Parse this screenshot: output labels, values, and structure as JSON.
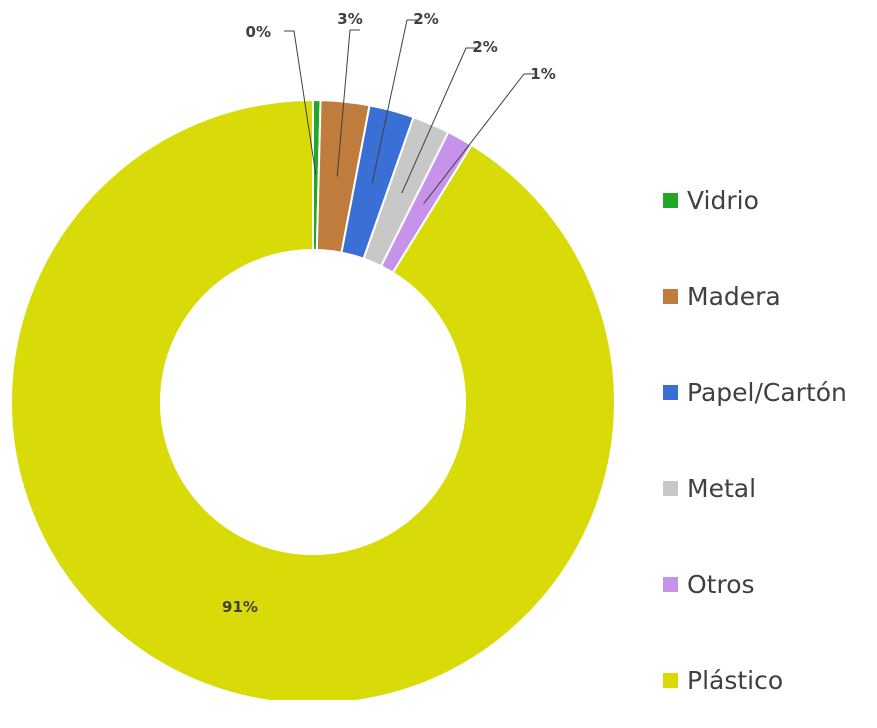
{
  "chart_data": {
    "type": "pie",
    "variant": "donut",
    "categories": [
      "Vidrio",
      "Madera",
      "Papel/Cartón",
      "Metal",
      "Otros",
      "Plástico"
    ],
    "values": [
      0.4,
      2.6,
      2.4,
      2.0,
      1.4,
      91.2
    ],
    "data_labels": [
      "0%",
      "3%",
      "2%",
      "2%",
      "1%",
      "91%"
    ],
    "colors": [
      "#22a829",
      "#c07c3c",
      "#3a6fd6",
      "#c8c8c8",
      "#c792ea",
      "#d9db09"
    ],
    "legend": {
      "position": "right"
    },
    "start_angle_deg": 0,
    "direction": "clockwise"
  }
}
